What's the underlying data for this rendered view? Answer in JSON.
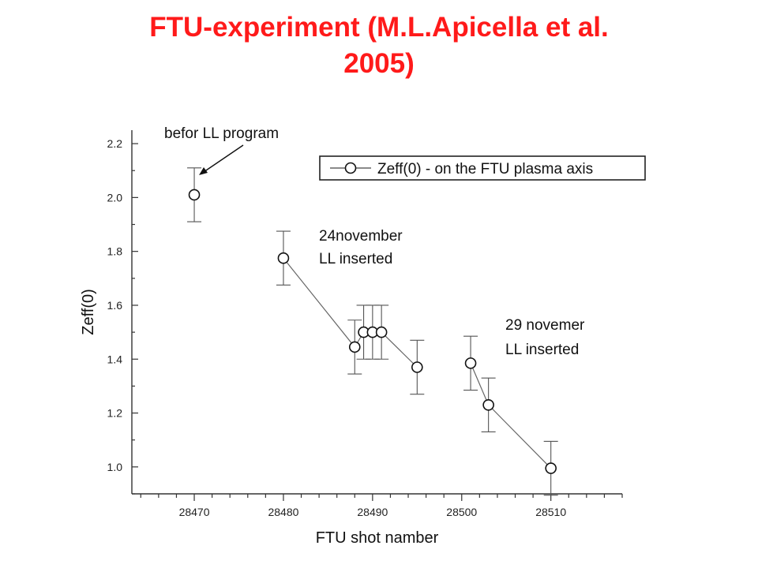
{
  "title_lines": [
    "FTU-experiment (M.L.Apicella et al.",
    "2005)"
  ],
  "colors": {
    "title": "#ff1a1a"
  },
  "chart_data": {
    "type": "scatter",
    "xlabel": "FTU shot namber",
    "ylabel": "Zeff(0)",
    "xlim": [
      28463,
      28518
    ],
    "ylim": [
      0.9,
      2.25
    ],
    "xticks": [
      28470,
      28480,
      28490,
      28500,
      28510
    ],
    "yticks": [
      1.0,
      1.2,
      1.4,
      1.6,
      1.8,
      2.0,
      2.2
    ],
    "x_minor_step": 2,
    "y_minor_step": 0.1,
    "grid": false,
    "legend_position": "top-right",
    "series": [
      {
        "name": "Zeff(0) - on the FTU plasma axis",
        "marker": "open-circle",
        "points": [
          {
            "x": 28470,
            "y": 2.01,
            "err": 0.1
          },
          {
            "x": 28480,
            "y": 1.775,
            "err": 0.1
          },
          {
            "x": 28488,
            "y": 1.445,
            "err": 0.1
          },
          {
            "x": 28489,
            "y": 1.5,
            "err": 0.1
          },
          {
            "x": 28490,
            "y": 1.5,
            "err": 0.1
          },
          {
            "x": 28491,
            "y": 1.5,
            "err": 0.1
          },
          {
            "x": 28495,
            "y": 1.37,
            "err": 0.1
          },
          {
            "x": 28501,
            "y": 1.385,
            "err": 0.1
          },
          {
            "x": 28503,
            "y": 1.23,
            "err": 0.1
          },
          {
            "x": 28510,
            "y": 0.995,
            "err": 0.1
          }
        ],
        "line_segments": [
          [
            28480,
            28491
          ],
          [
            28491,
            28495
          ],
          [
            28501,
            28510
          ]
        ]
      }
    ],
    "annotations": [
      {
        "lines": [
          "befor LL program"
        ],
        "arrow_to": {
          "x": 28471,
          "y": 2.05
        }
      },
      {
        "lines": [
          "24november",
          "LL inserted"
        ]
      },
      {
        "lines": [
          "29 novemer",
          "LL inserted"
        ]
      }
    ]
  }
}
